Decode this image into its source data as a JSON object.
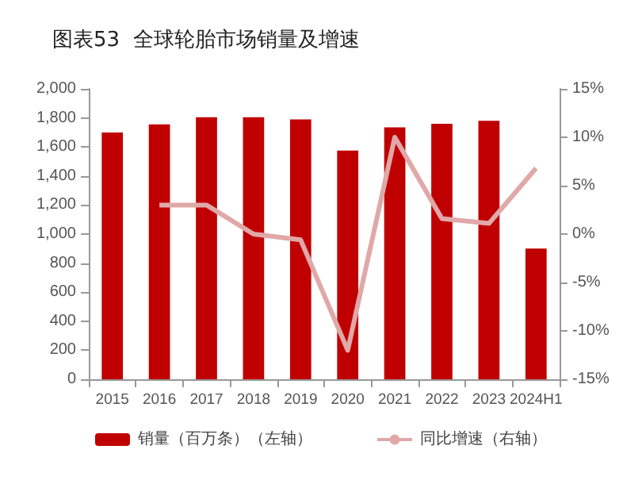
{
  "chart_data": {
    "type": "bar",
    "title": "图表53  全球轮胎市场销量及增速",
    "categories": [
      "2015",
      "2016",
      "2017",
      "2018",
      "2019",
      "2020",
      "2021",
      "2022",
      "2023",
      "2024H1"
    ],
    "series": [
      {
        "name": "销量（百万条）（左轴）",
        "color": "#c00000",
        "values": [
          1700,
          1755,
          1805,
          1805,
          1790,
          1575,
          1735,
          1760,
          1780,
          900
        ]
      },
      {
        "name": "同比增速（右轴）",
        "type": "line",
        "axis": "y2",
        "color": "#e0a8a8",
        "values": [
          null,
          3,
          3,
          0,
          -0.6,
          -12,
          10,
          1.6,
          1.1,
          6.8
        ]
      }
    ],
    "ylim": [
      0,
      2000
    ],
    "yticks": [
      {
        "value": 0,
        "label": "0"
      },
      {
        "value": 200,
        "label": "200"
      },
      {
        "value": 400,
        "label": "400"
      },
      {
        "value": 600,
        "label": "600"
      },
      {
        "value": 800,
        "label": "800"
      },
      {
        "value": 1000,
        "label": "1,000"
      },
      {
        "value": 1200,
        "label": "1,200"
      },
      {
        "value": 1400,
        "label": "1,400"
      },
      {
        "value": 1600,
        "label": "1,600"
      },
      {
        "value": 1800,
        "label": "1,800"
      },
      {
        "value": 2000,
        "label": "2,000"
      }
    ],
    "y2lim": [
      -15,
      15
    ],
    "y2ticks": [
      {
        "value": -15,
        "label": "-15%"
      },
      {
        "value": -10,
        "label": "-10%"
      },
      {
        "value": -5,
        "label": "-5%"
      },
      {
        "value": 0,
        "label": "0%"
      },
      {
        "value": 5,
        "label": "5%"
      },
      {
        "value": 10,
        "label": "10%"
      },
      {
        "value": 15,
        "label": "15%"
      }
    ],
    "legend": "bottom",
    "marker": "none"
  }
}
